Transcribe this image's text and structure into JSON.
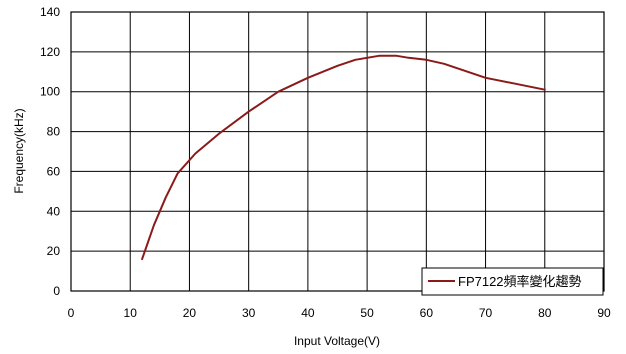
{
  "chart_data": {
    "type": "line",
    "title": "",
    "xlabel": "Input Voltage(V)",
    "ylabel": "Frequency(kHz)",
    "xlim": [
      0,
      90
    ],
    "ylim": [
      0,
      140
    ],
    "x_ticks": [
      0,
      10,
      20,
      30,
      40,
      50,
      60,
      70,
      80,
      90
    ],
    "y_ticks": [
      0,
      20,
      40,
      60,
      80,
      100,
      120,
      140
    ],
    "grid": true,
    "legend_position": "bottom-right",
    "series": [
      {
        "name": "FP7122頻率變化趨勢",
        "color": "#8b1a1a",
        "x": [
          12,
          14,
          16,
          18,
          21,
          25,
          30,
          35,
          40,
          45,
          48,
          50,
          52,
          55,
          57,
          60,
          63,
          66,
          70,
          75,
          80
        ],
        "y": [
          16,
          33,
          47,
          59,
          69,
          79,
          90,
          100,
          107,
          113,
          116,
          117,
          118,
          118,
          117,
          116,
          114,
          111,
          107,
          104,
          101
        ]
      }
    ]
  }
}
